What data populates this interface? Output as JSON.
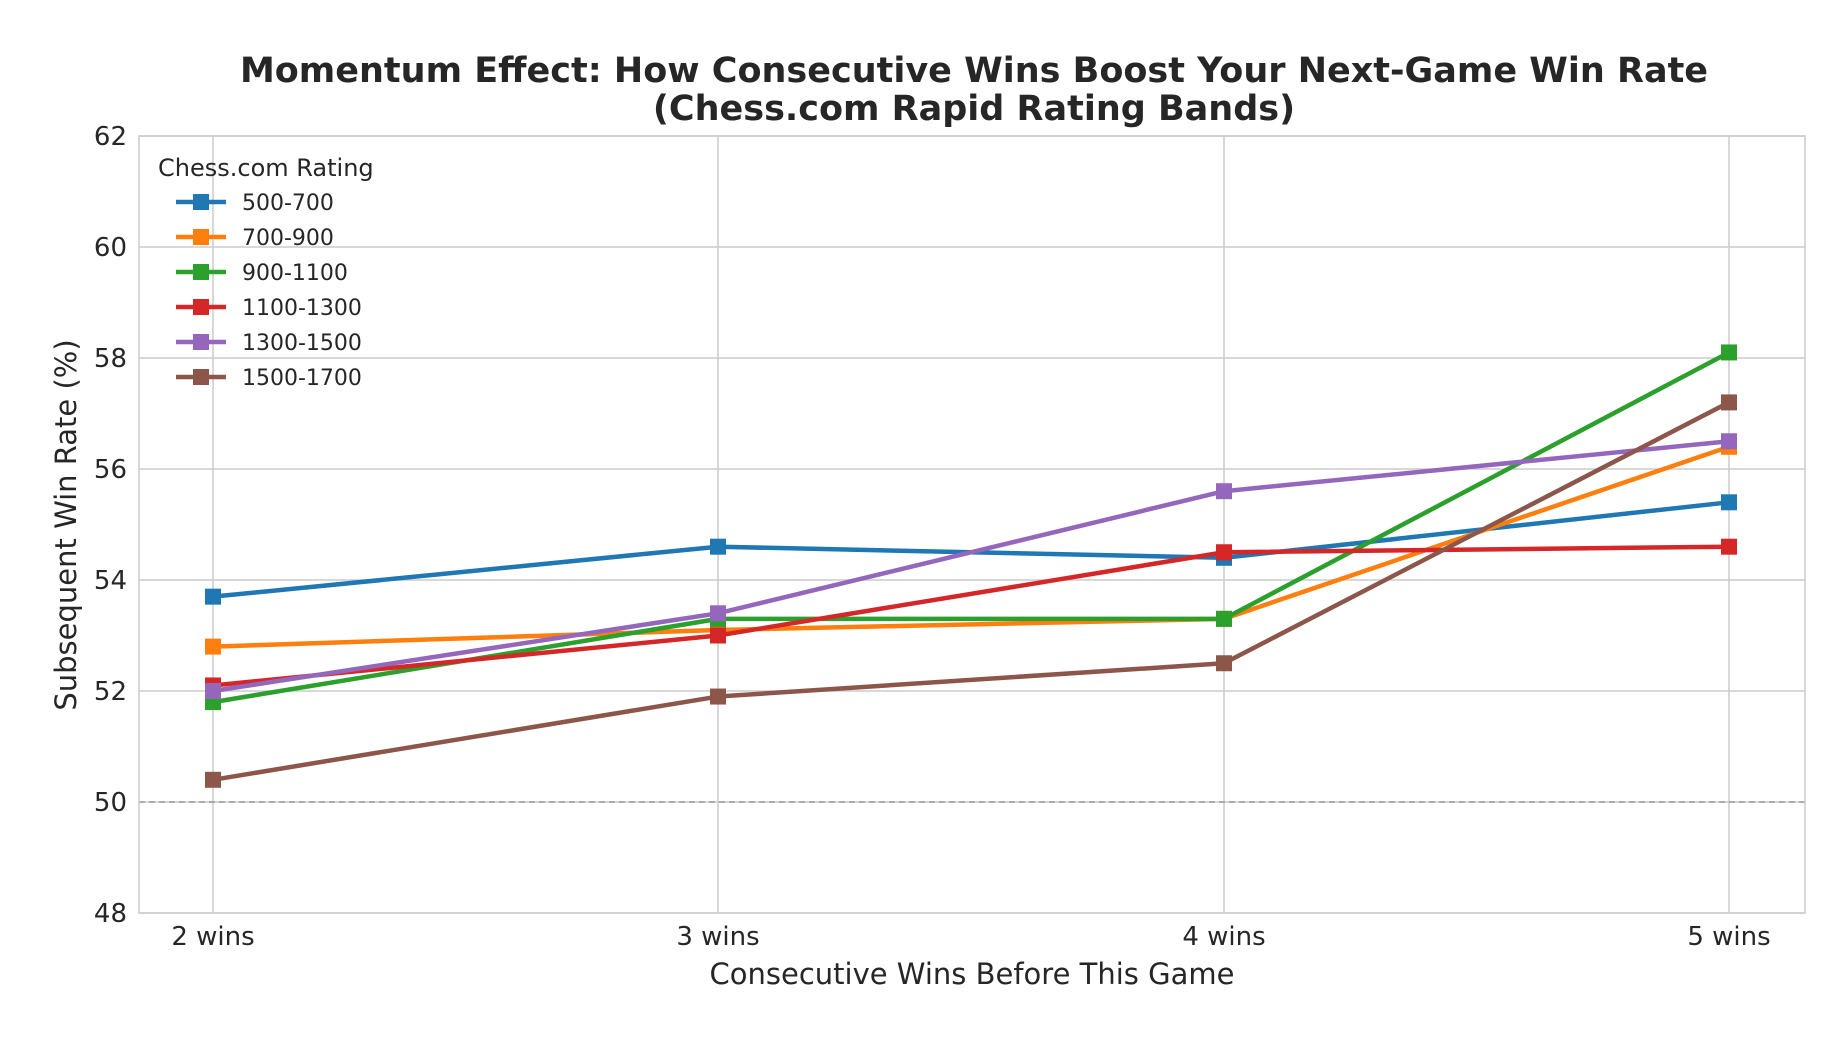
{
  "chart_data": {
    "type": "line",
    "title_lines": [
      "Momentum Effect: How Consecutive Wins Boost Your Next-Game Win Rate",
      "(Chess.com Rapid Rating Bands)"
    ],
    "xlabel": "Consecutive Wins Before This Game",
    "ylabel": "Subsequent Win Rate (%)",
    "categories": [
      "2 wins",
      "3 wins",
      "4 wins",
      "5 wins"
    ],
    "ylim": [
      48,
      62
    ],
    "yticks": [
      "48",
      "50",
      "52",
      "54",
      "56",
      "58",
      "60",
      "62"
    ],
    "grid": true,
    "reference_line": {
      "y": 50,
      "style": "dashed",
      "color": "#999999"
    },
    "legend": {
      "title": "Chess.com Rating",
      "placement": "top-left"
    },
    "marker": "square",
    "series": [
      {
        "name": "500-700",
        "color": "#1f77b4",
        "values": [
          53.7,
          54.6,
          54.4,
          55.4
        ]
      },
      {
        "name": "700-900",
        "color": "#ff7f0e",
        "values": [
          52.8,
          53.1,
          53.3,
          56.4
        ]
      },
      {
        "name": "900-1100",
        "color": "#2ca02c",
        "values": [
          51.8,
          53.3,
          53.3,
          58.1
        ]
      },
      {
        "name": "1100-1300",
        "color": "#d62728",
        "values": [
          52.1,
          53.0,
          54.5,
          54.6
        ]
      },
      {
        "name": "1300-1500",
        "color": "#9467bd",
        "values": [
          52.0,
          53.4,
          55.6,
          56.5
        ]
      },
      {
        "name": "1500-1700",
        "color": "#8c564b",
        "values": [
          50.4,
          51.9,
          52.5,
          57.2
        ]
      }
    ]
  }
}
